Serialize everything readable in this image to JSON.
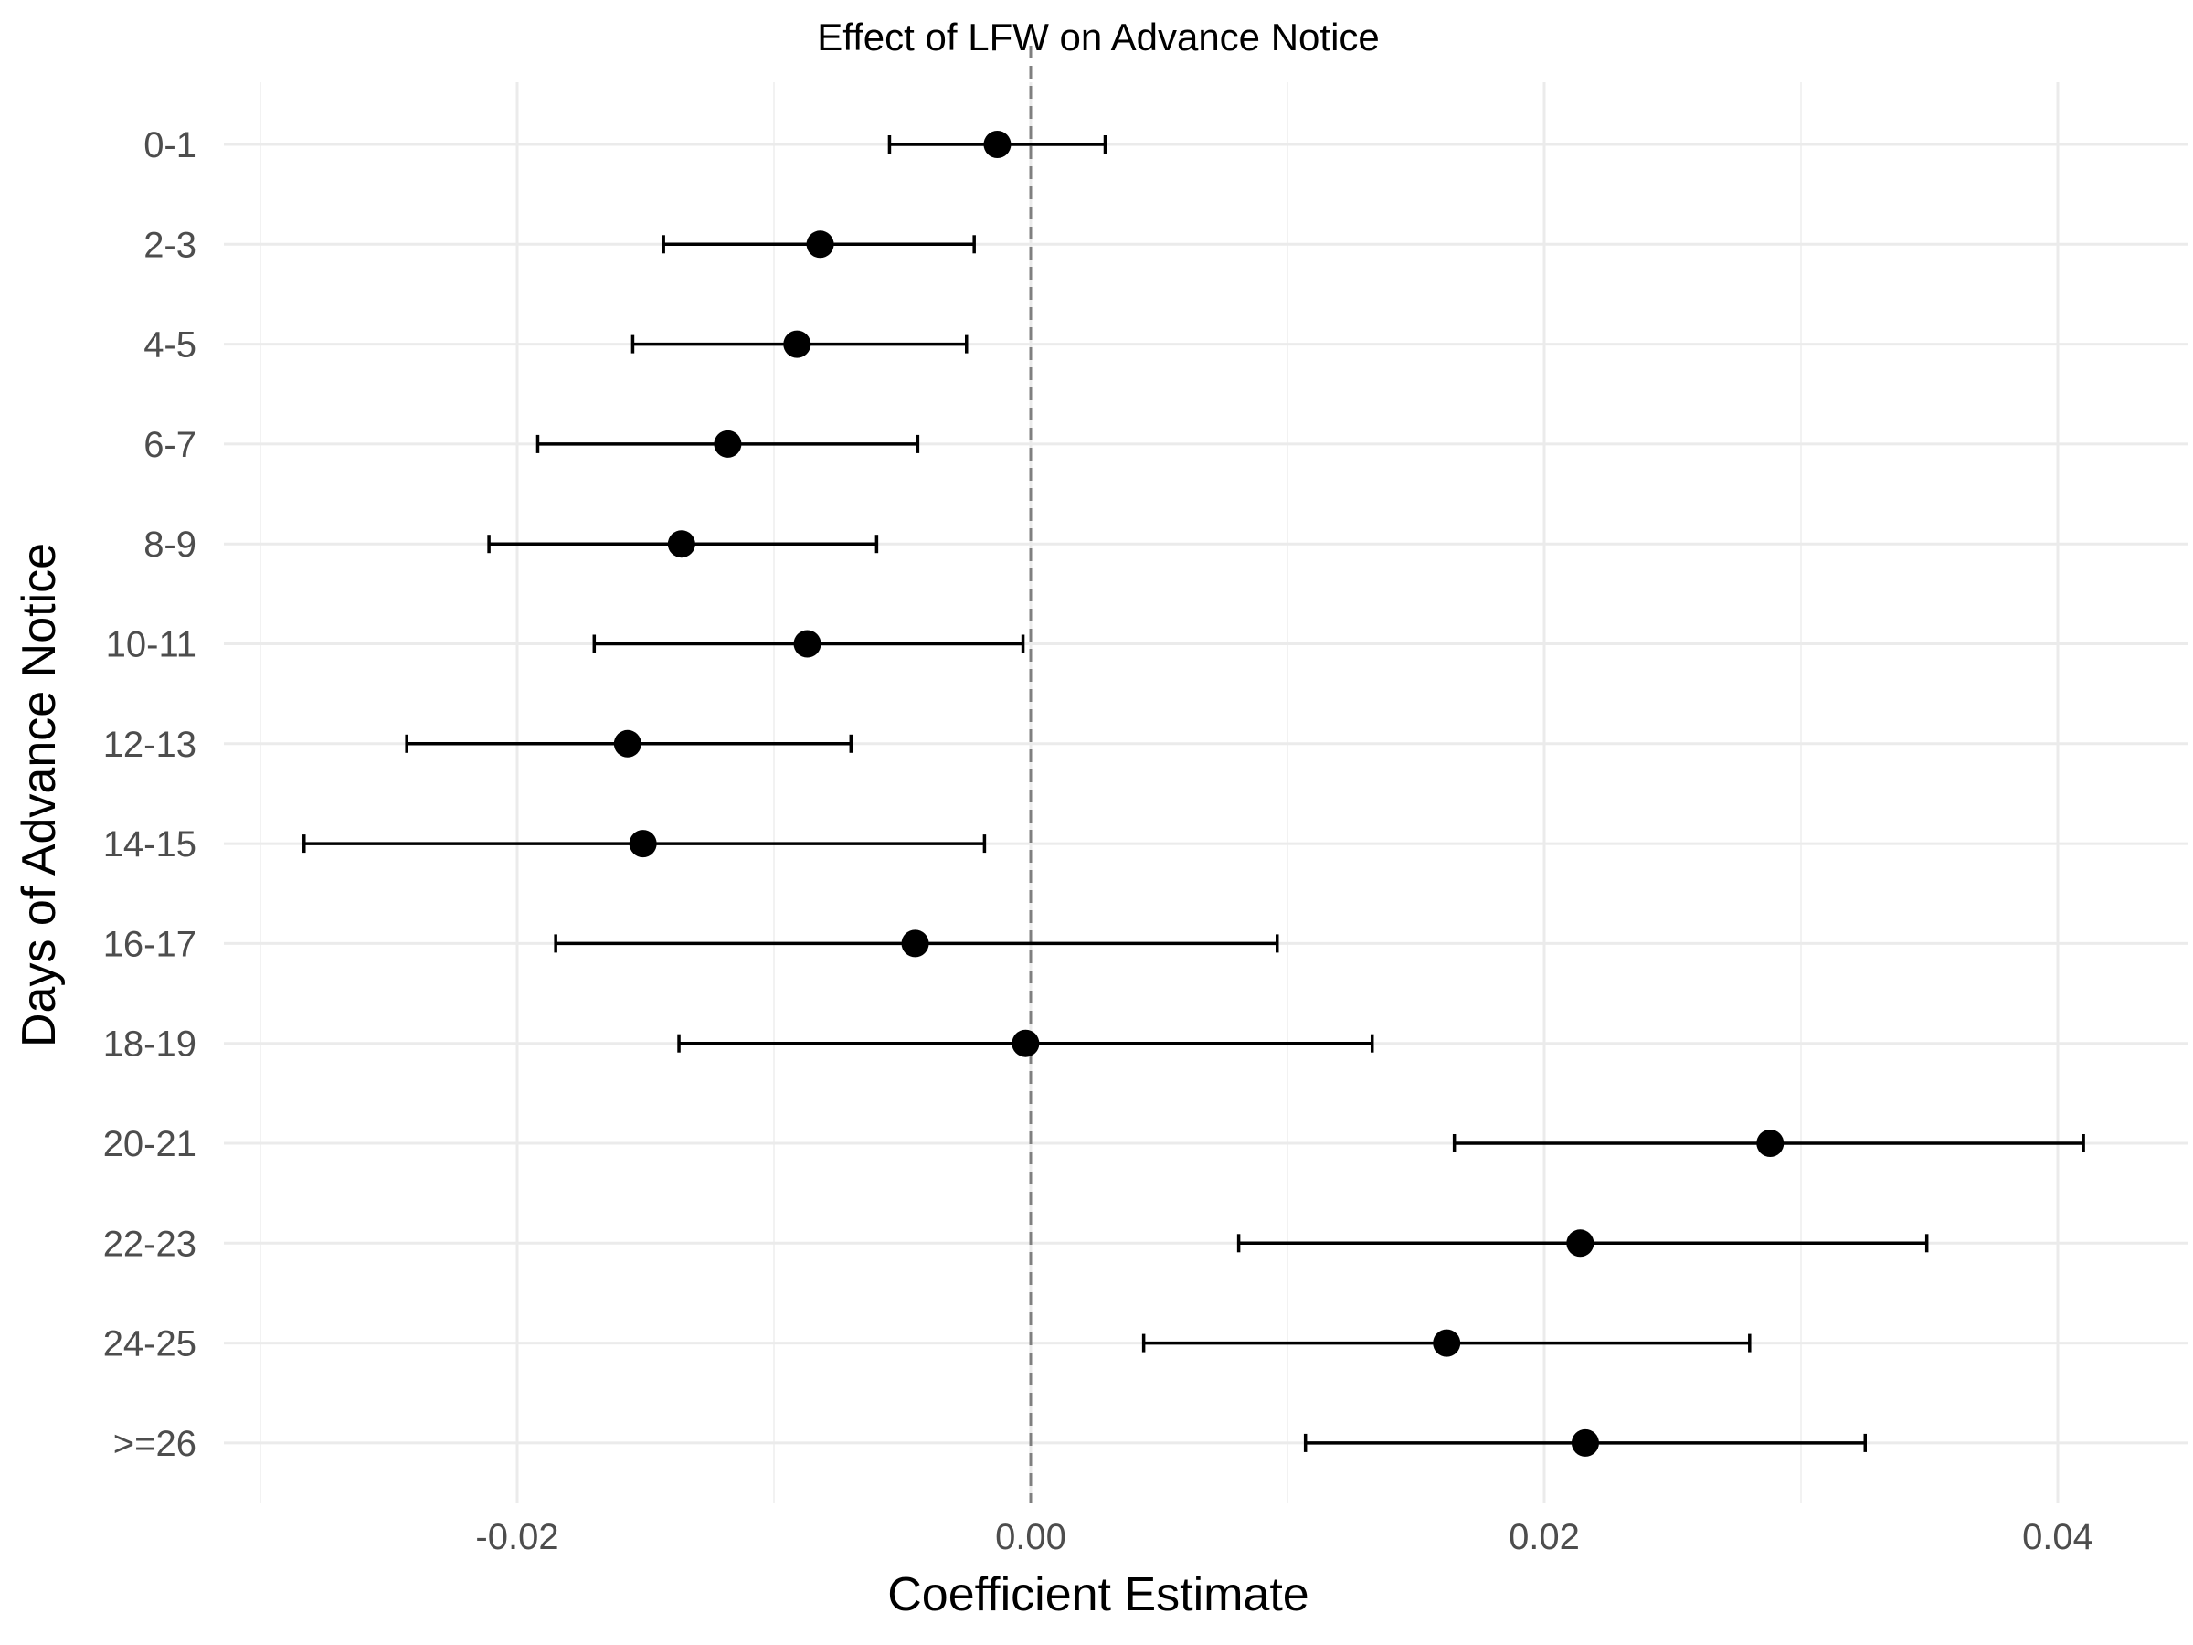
{
  "chart_data": {
    "type": "scatter",
    "title": "Effect of LFW on Advance Notice",
    "xlabel": "Coefficient Estimate",
    "ylabel": "Days of Advance Notice",
    "xlim": [
      -0.03,
      0.043
    ],
    "xticks": [
      -0.02,
      0.0,
      0.02,
      0.04
    ],
    "xtick_labels": [
      "-0.02",
      "0.00",
      "0.02",
      "0.04"
    ],
    "reference_line": 0.0,
    "grid": true,
    "points_color": "#000000",
    "reference_color": "#7f7f7f",
    "categories": [
      "0-1",
      "2-3",
      "4-5",
      "6-7",
      "8-9",
      "10-11",
      "12-13",
      "14-15",
      "16-17",
      "18-19",
      "20-21",
      "22-23",
      "24-25",
      ">=26"
    ],
    "estimates": [
      -0.0013,
      -0.0082,
      -0.0091,
      -0.0118,
      -0.0136,
      -0.0087,
      -0.0157,
      -0.0151,
      -0.0045,
      -0.0002,
      0.0288,
      0.0214,
      0.0162,
      0.0216
    ],
    "ci_lower": [
      -0.0055,
      -0.0143,
      -0.0155,
      -0.0192,
      -0.0211,
      -0.017,
      -0.0243,
      -0.0283,
      -0.0185,
      -0.0137,
      0.0165,
      0.0081,
      0.0044,
      0.0107
    ],
    "ci_upper": [
      0.0029,
      -0.0022,
      -0.0025,
      -0.0044,
      -0.006,
      -0.0003,
      -0.007,
      -0.0018,
      0.0096,
      0.0133,
      0.041,
      0.0349,
      0.028,
      0.0325
    ]
  }
}
